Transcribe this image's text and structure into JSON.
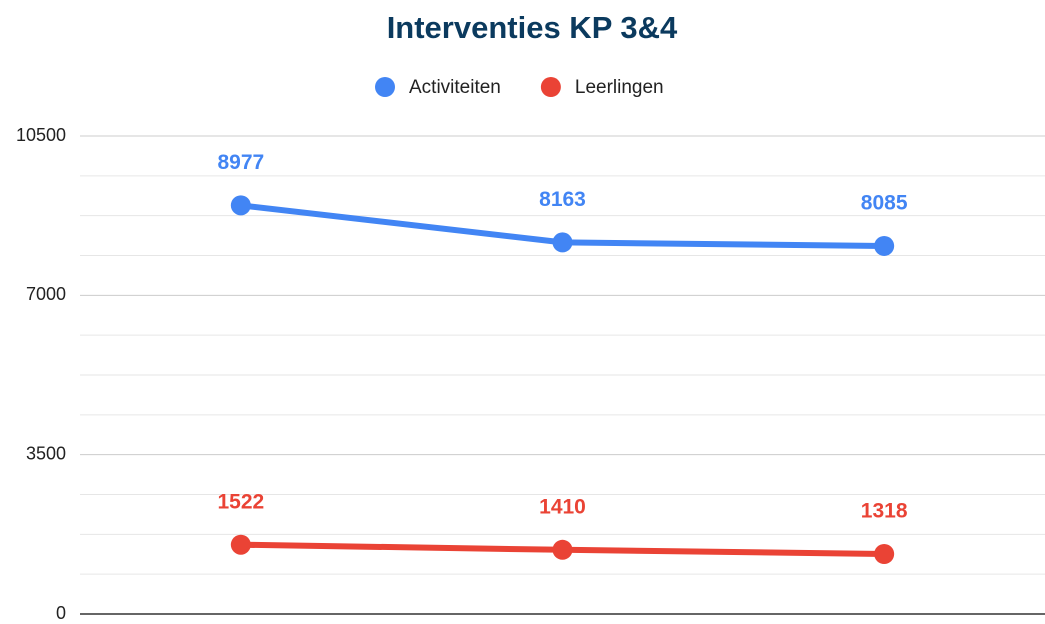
{
  "chart_data": {
    "type": "line",
    "title": "Interventies KP 3&4",
    "categories": [
      null,
      null,
      null
    ],
    "series": [
      {
        "name": "Activiteiten",
        "color": "#4285f4",
        "values": [
          8977,
          8163,
          8085
        ]
      },
      {
        "name": "Leerlingen",
        "color": "#ea4335",
        "values": [
          1522,
          1410,
          1318
        ]
      }
    ],
    "ylim": [
      0,
      10500
    ],
    "yticks": [
      0,
      3500,
      7000,
      10500
    ],
    "minor_yticks": [
      875,
      1750,
      2625,
      4375,
      5250,
      6125,
      7875,
      8750,
      9625
    ],
    "grid": true,
    "legend": "top"
  }
}
